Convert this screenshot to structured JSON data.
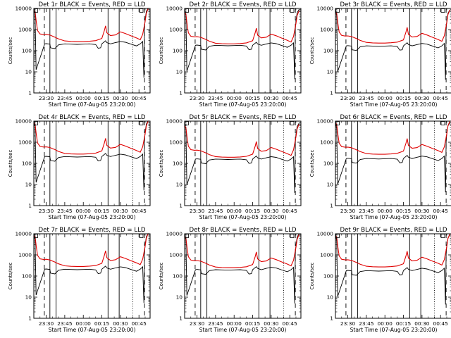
{
  "colors": {
    "background": "#ffffff",
    "events": "#000000",
    "lld": "#e00000",
    "axes": "#000000"
  },
  "chart_data": {
    "type": "line",
    "layout": "3x3 grid",
    "yscale": "log",
    "ylim": [
      1,
      10000
    ],
    "yticks": [
      "1",
      "10",
      "100",
      "1000",
      "10000"
    ],
    "ylabel": "Counts/sec",
    "xlabel": "Start Time (07-Aug-05 23:20:00)",
    "xlim": [
      "23:20",
      "00:58"
    ],
    "xticks": [
      "23:30",
      "23:45",
      "00:00",
      "00:15",
      "00:30",
      "00:45"
    ],
    "xticks_minutes_after_2320": [
      10,
      25,
      40,
      55,
      70,
      85
    ],
    "vertical_markers": {
      "solid_minutes_after_2320": [
        13,
        18,
        60,
        69
      ],
      "dashed_minutes_after_2320": [
        8.5,
        89.5
      ],
      "dotted_minutes_after_2320": [
        80
      ]
    },
    "series_templates": {
      "lld": [
        [
          0.3,
          8000
        ],
        [
          1,
          7000
        ],
        [
          2,
          2300
        ],
        [
          3,
          900
        ],
        [
          5,
          620
        ],
        [
          8,
          580
        ],
        [
          10,
          590
        ],
        [
          13,
          550
        ],
        [
          17,
          440
        ],
        [
          20,
          360
        ],
        [
          25,
          290
        ],
        [
          30,
          275
        ],
        [
          35,
          270
        ],
        [
          40,
          270
        ],
        [
          45,
          280
        ],
        [
          50,
          300
        ],
        [
          55,
          380
        ],
        [
          57,
          900
        ],
        [
          58,
          1500
        ],
        [
          59,
          700
        ],
        [
          62,
          520
        ],
        [
          66,
          560
        ],
        [
          70,
          780
        ],
        [
          74,
          650
        ],
        [
          78,
          520
        ],
        [
          83,
          400
        ],
        [
          86,
          330
        ],
        [
          88,
          600
        ],
        [
          90,
          2500
        ],
        [
          91,
          6000
        ],
        [
          92.5,
          10000
        ]
      ],
      "events": [
        [
          0.3,
          9000
        ],
        [
          1,
          5000
        ],
        [
          1.8,
          12
        ],
        [
          8.8,
          200
        ],
        [
          10,
          205
        ],
        [
          13,
          195
        ],
        [
          13.5,
          130
        ],
        [
          17,
          120
        ],
        [
          20,
          180
        ],
        [
          25,
          200
        ],
        [
          30,
          195
        ],
        [
          35,
          190
        ],
        [
          40,
          195
        ],
        [
          45,
          200
        ],
        [
          50,
          185
        ],
        [
          52,
          125
        ],
        [
          54,
          130
        ],
        [
          55,
          200
        ],
        [
          58,
          280
        ],
        [
          59,
          230
        ],
        [
          62,
          200
        ],
        [
          66,
          230
        ],
        [
          70,
          260
        ],
        [
          74,
          240
        ],
        [
          78,
          200
        ],
        [
          83,
          160
        ],
        [
          86,
          200
        ],
        [
          88,
          260
        ],
        [
          89,
          5
        ],
        [
          89.5,
          1200
        ],
        [
          90,
          3000
        ],
        [
          91,
          7000
        ],
        [
          92.5,
          10000
        ]
      ]
    },
    "panels": [
      {
        "title": "Det 1r  BLACK = Events, RED = LLD",
        "events_scale": 1.05,
        "lld_scale": 1.0
      },
      {
        "title": "Det 2r  BLACK = Events, RED = LLD",
        "events_scale": 0.9,
        "lld_scale": 0.78
      },
      {
        "title": "Det 3r  BLACK = Events, RED = LLD",
        "events_scale": 0.85,
        "lld_scale": 0.85
      },
      {
        "title": "Det 4r  BLACK = Events, RED = LLD",
        "events_scale": 1.05,
        "lld_scale": 1.02
      },
      {
        "title": "Det 5r  BLACK = Events, RED = LLD",
        "events_scale": 0.8,
        "lld_scale": 0.72
      },
      {
        "title": "Det 6r  BLACK = Events, RED = LLD",
        "events_scale": 0.85,
        "lld_scale": 1.0
      },
      {
        "title": "Det 7r  BLACK = Events, RED = LLD",
        "events_scale": 1.05,
        "lld_scale": 1.05
      },
      {
        "title": "Det 8r  BLACK = Events, RED = LLD",
        "events_scale": 1.0,
        "lld_scale": 0.92
      },
      {
        "title": "Det 9r  BLACK = Events, RED = LLD",
        "events_scale": 0.9,
        "lld_scale": 1.0
      }
    ]
  }
}
